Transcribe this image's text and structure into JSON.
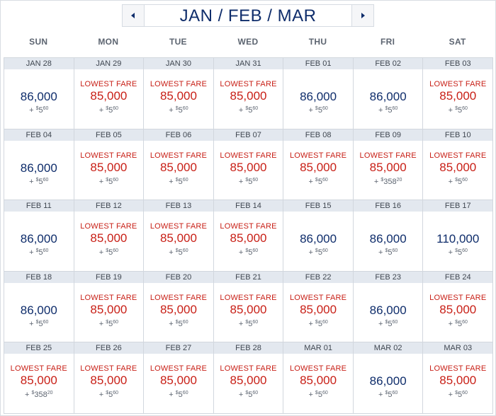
{
  "header": {
    "title": "JAN / FEB / MAR",
    "prev_icon": "chevron-left-icon",
    "next_icon": "chevron-right-icon"
  },
  "weekdays": [
    "SUN",
    "MON",
    "TUE",
    "WED",
    "THU",
    "FRI",
    "SAT"
  ],
  "colors": {
    "lowest": "#c81f16",
    "regular": "#0f2d6b",
    "date_bg": "#e3e8ef"
  },
  "weeks": [
    [
      {
        "date": "JAN 28",
        "label": "",
        "miles": "86,000",
        "fee": "5",
        "cents": "60"
      },
      {
        "date": "JAN 29",
        "label": "LOWEST FARE",
        "miles": "85,000",
        "fee": "5",
        "cents": "60"
      },
      {
        "date": "JAN 30",
        "label": "LOWEST FARE",
        "miles": "85,000",
        "fee": "5",
        "cents": "60"
      },
      {
        "date": "JAN 31",
        "label": "LOWEST FARE",
        "miles": "85,000",
        "fee": "5",
        "cents": "60"
      },
      {
        "date": "FEB 01",
        "label": "",
        "miles": "86,000",
        "fee": "5",
        "cents": "60"
      },
      {
        "date": "FEB 02",
        "label": "",
        "miles": "86,000",
        "fee": "5",
        "cents": "60"
      },
      {
        "date": "FEB 03",
        "label": "LOWEST FARE",
        "miles": "85,000",
        "fee": "5",
        "cents": "60"
      }
    ],
    [
      {
        "date": "FEB 04",
        "label": "",
        "miles": "86,000",
        "fee": "5",
        "cents": "60"
      },
      {
        "date": "FEB 05",
        "label": "LOWEST FARE",
        "miles": "85,000",
        "fee": "5",
        "cents": "60"
      },
      {
        "date": "FEB 06",
        "label": "LOWEST FARE",
        "miles": "85,000",
        "fee": "5",
        "cents": "60"
      },
      {
        "date": "FEB 07",
        "label": "LOWEST FARE",
        "miles": "85,000",
        "fee": "5",
        "cents": "60"
      },
      {
        "date": "FEB 08",
        "label": "LOWEST FARE",
        "miles": "85,000",
        "fee": "5",
        "cents": "60"
      },
      {
        "date": "FEB 09",
        "label": "LOWEST FARE",
        "miles": "85,000",
        "fee": "358",
        "cents": "20"
      },
      {
        "date": "FEB 10",
        "label": "LOWEST FARE",
        "miles": "85,000",
        "fee": "5",
        "cents": "60"
      }
    ],
    [
      {
        "date": "FEB 11",
        "label": "",
        "miles": "86,000",
        "fee": "5",
        "cents": "60"
      },
      {
        "date": "FEB 12",
        "label": "LOWEST FARE",
        "miles": "85,000",
        "fee": "5",
        "cents": "60"
      },
      {
        "date": "FEB 13",
        "label": "LOWEST FARE",
        "miles": "85,000",
        "fee": "5",
        "cents": "60"
      },
      {
        "date": "FEB 14",
        "label": "LOWEST FARE",
        "miles": "85,000",
        "fee": "5",
        "cents": "60"
      },
      {
        "date": "FEB 15",
        "label": "",
        "miles": "86,000",
        "fee": "5",
        "cents": "60"
      },
      {
        "date": "FEB 16",
        "label": "",
        "miles": "86,000",
        "fee": "5",
        "cents": "60"
      },
      {
        "date": "FEB 17",
        "label": "",
        "miles": "110,000",
        "fee": "5",
        "cents": "60"
      }
    ],
    [
      {
        "date": "FEB 18",
        "label": "",
        "miles": "86,000",
        "fee": "5",
        "cents": "60"
      },
      {
        "date": "FEB 19",
        "label": "LOWEST FARE",
        "miles": "85,000",
        "fee": "5",
        "cents": "60"
      },
      {
        "date": "FEB 20",
        "label": "LOWEST FARE",
        "miles": "85,000",
        "fee": "5",
        "cents": "60"
      },
      {
        "date": "FEB 21",
        "label": "LOWEST FARE",
        "miles": "85,000",
        "fee": "5",
        "cents": "60"
      },
      {
        "date": "FEB 22",
        "label": "LOWEST FARE",
        "miles": "85,000",
        "fee": "5",
        "cents": "60"
      },
      {
        "date": "FEB 23",
        "label": "",
        "miles": "86,000",
        "fee": "5",
        "cents": "60"
      },
      {
        "date": "FEB 24",
        "label": "LOWEST FARE",
        "miles": "85,000",
        "fee": "5",
        "cents": "60"
      }
    ],
    [
      {
        "date": "FEB 25",
        "label": "LOWEST FARE",
        "miles": "85,000",
        "fee": "358",
        "cents": "20"
      },
      {
        "date": "FEB 26",
        "label": "LOWEST FARE",
        "miles": "85,000",
        "fee": "5",
        "cents": "60"
      },
      {
        "date": "FEB 27",
        "label": "LOWEST FARE",
        "miles": "85,000",
        "fee": "5",
        "cents": "60"
      },
      {
        "date": "FEB 28",
        "label": "LOWEST FARE",
        "miles": "85,000",
        "fee": "5",
        "cents": "60"
      },
      {
        "date": "MAR 01",
        "label": "LOWEST FARE",
        "miles": "85,000",
        "fee": "5",
        "cents": "60"
      },
      {
        "date": "MAR 02",
        "label": "",
        "miles": "86,000",
        "fee": "5",
        "cents": "60"
      },
      {
        "date": "MAR 03",
        "label": "LOWEST FARE",
        "miles": "85,000",
        "fee": "5",
        "cents": "60"
      }
    ]
  ]
}
